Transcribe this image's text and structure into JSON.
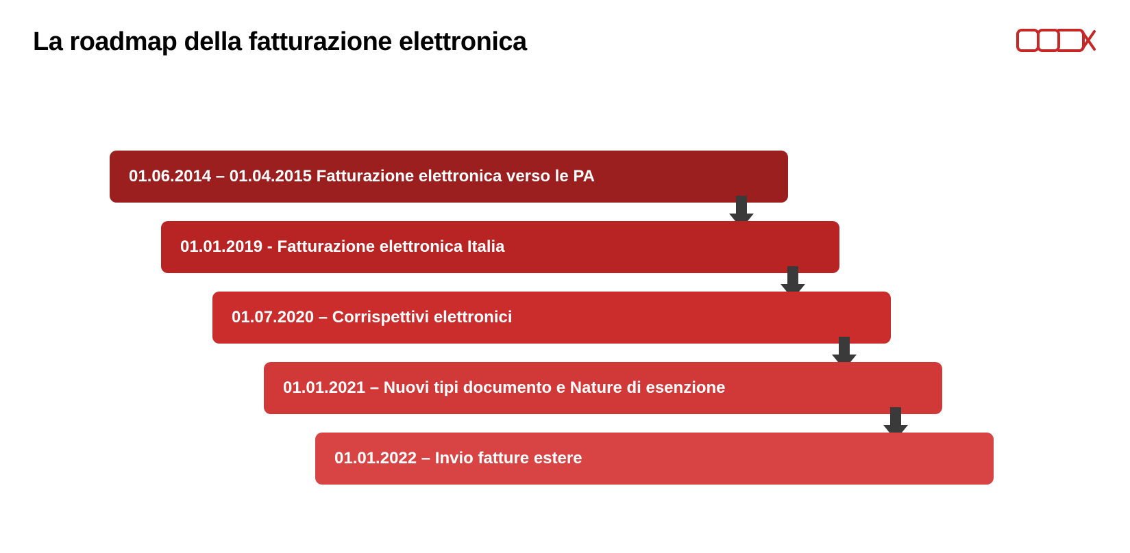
{
  "title": {
    "text": "La roadmap della fatturazione elettronica",
    "fontsize": 38,
    "color": "#000000"
  },
  "logo": {
    "color": "#c62828",
    "width": 120,
    "height": 42
  },
  "diagram": {
    "type": "flowchart",
    "background_color": "#ffffff",
    "step_height": 76,
    "step_width": 990,
    "step_border_radius": 10,
    "step_fontsize": 24,
    "step_font_weight": 700,
    "step_text_color": "#ffffff",
    "step_left_offset_increment": 75,
    "step_vertical_gap": 103,
    "first_step_left": 160,
    "arrow_color": "#3a3a3a",
    "arrow_width": 40,
    "arrow_height": 50,
    "arrow_right_inset": 68,
    "steps": [
      {
        "label": "01.06.2014 – 01.04.2015 Fatturazione elettronica verso le PA",
        "color": "#9c1f1f"
      },
      {
        "label": "01.01.2019  - Fatturazione elettronica Italia",
        "color": "#b82323"
      },
      {
        "label": "01.07.2020 – Corrispettivi elettronici",
        "color": "#cb2d2d"
      },
      {
        "label": "01.01.2021 – Nuovi tipi documento e Nature di esenzione",
        "color": "#d13838"
      },
      {
        "label": "01.01.2022 – Invio fatture estere",
        "color": "#d84444"
      }
    ]
  }
}
